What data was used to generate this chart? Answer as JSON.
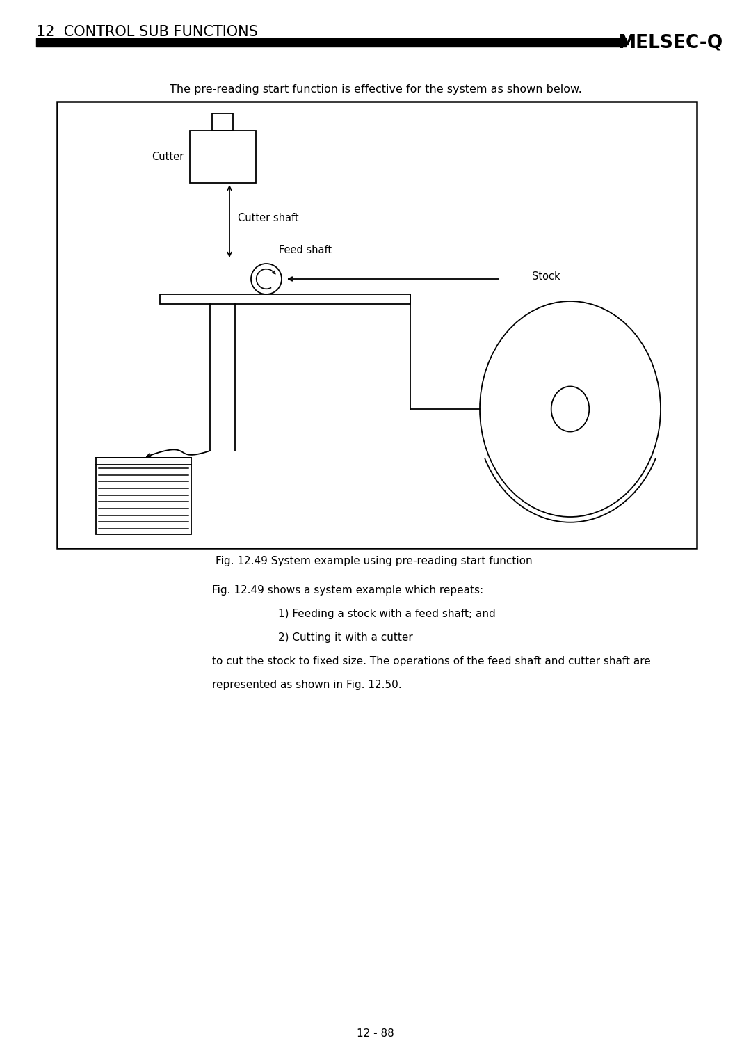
{
  "page_title": "12  CONTROL SUB FUNCTIONS",
  "brand": "MELSEC-Q",
  "above_box_text": "The pre-reading start function is effective for the system as shown below.",
  "fig_caption": "Fig. 12.49 System example using pre-reading start function",
  "body_text_line1": "Fig. 12.49 shows a system example which repeats:",
  "body_text_line2": "1) Feeding a stock with a feed shaft; and",
  "body_text_line3": "2) Cutting it with a cutter",
  "body_text_line4": "to cut the stock to fixed size. The operations of the feed shaft and cutter shaft are",
  "body_text_line5": "represented as shown in Fig. 12.50.",
  "page_number": "12 - 88",
  "label_cutter": "Cutter",
  "label_cutter_shaft": "Cutter shaft",
  "label_feed_shaft": "Feed shaft",
  "label_stock": "Stock",
  "bg_color": "#ffffff",
  "line_color": "#000000"
}
